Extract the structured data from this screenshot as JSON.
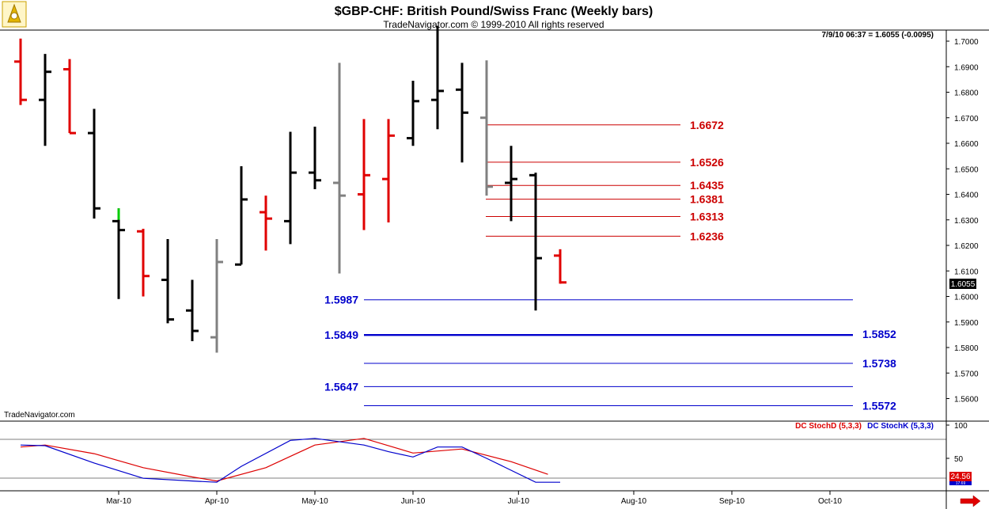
{
  "header": {
    "title": "$GBP-CHF:  British Pound/Swiss Franc  (Weekly bars)",
    "subtitle": "TradeNavigator.com © 1999-2010 All rights reserved",
    "quote": "7/9/10 06:37 = 1.6055 (-0.0095)",
    "watermark": "TradeNavigator.com"
  },
  "colors": {
    "up": "#000000",
    "down": "#e00000",
    "neutral": "#808080",
    "highlight": "#00cc00",
    "resistance": "#cc0000",
    "support": "#0000cc",
    "stochD": "#dd0000",
    "stochK": "#0000cc"
  },
  "icons": {
    "logo": "sextant-icon",
    "scroll": "arrow-right-icon"
  },
  "chart_data": [
    {
      "type": "ohlc",
      "title": "$GBP-CHF:  British Pound/Swiss Franc  (Weekly bars)",
      "ylim": [
        1.5545,
        1.7065
      ],
      "y_ticks": [
        "1.7000",
        "1.6900",
        "1.6800",
        "1.6700",
        "1.6600",
        "1.6500",
        "1.6400",
        "1.6300",
        "1.6200",
        "1.6100",
        "1.6000",
        "1.5900",
        "1.5800",
        "1.5700",
        "1.5600"
      ],
      "x_ticks": [
        "Mar-10",
        "Apr-10",
        "May-10",
        "Jun-10",
        "Jul-10",
        "Aug-10",
        "Sep-10",
        "Oct-10"
      ],
      "x_tick_week": [
        4.0,
        8.0,
        12.0,
        16.0,
        20.3,
        25.0,
        29.0,
        33.0
      ],
      "last_price": "1.6055",
      "bars": [
        {
          "w": 0,
          "o": 1.692,
          "h": 1.701,
          "l": 1.675,
          "c": 1.677,
          "color": "down"
        },
        {
          "w": 1,
          "o": 1.677,
          "h": 1.695,
          "l": 1.659,
          "c": 1.688,
          "color": "up"
        },
        {
          "w": 2,
          "o": 1.689,
          "h": 1.693,
          "l": 1.664,
          "c": 1.664,
          "color": "down"
        },
        {
          "w": 3,
          "o": 1.664,
          "h": 1.6735,
          "l": 1.6305,
          "c": 1.6345,
          "color": "up"
        },
        {
          "w": 4,
          "o": 1.6295,
          "h": 1.6345,
          "l": 1.599,
          "c": 1.626,
          "color": "up",
          "top_color": "highlight",
          "top_from": 1.63
        },
        {
          "w": 5,
          "o": 1.6255,
          "h": 1.6265,
          "l": 1.6,
          "c": 1.608,
          "color": "down"
        },
        {
          "w": 6,
          "o": 1.6065,
          "h": 1.6225,
          "l": 1.5895,
          "c": 1.591,
          "color": "up"
        },
        {
          "w": 7,
          "o": 1.5945,
          "h": 1.6065,
          "l": 1.5825,
          "c": 1.5865,
          "color": "up"
        },
        {
          "w": 8,
          "o": 1.584,
          "h": 1.6225,
          "l": 1.578,
          "c": 1.6135,
          "color": "neutral"
        },
        {
          "w": 9,
          "o": 1.6125,
          "h": 1.651,
          "l": 1.6125,
          "c": 1.638,
          "color": "up"
        },
        {
          "w": 10,
          "o": 1.633,
          "h": 1.6395,
          "l": 1.618,
          "c": 1.6305,
          "color": "down"
        },
        {
          "w": 11,
          "o": 1.6295,
          "h": 1.6645,
          "l": 1.6205,
          "c": 1.6485,
          "color": "up"
        },
        {
          "w": 12,
          "o": 1.6485,
          "h": 1.6665,
          "l": 1.642,
          "c": 1.6455,
          "color": "up"
        },
        {
          "w": 13,
          "o": 1.6445,
          "h": 1.6915,
          "l": 1.609,
          "c": 1.6395,
          "color": "neutral"
        },
        {
          "w": 14,
          "o": 1.64,
          "h": 1.6695,
          "l": 1.626,
          "c": 1.6475,
          "color": "down"
        },
        {
          "w": 15,
          "o": 1.646,
          "h": 1.6695,
          "l": 1.629,
          "c": 1.663,
          "color": "down"
        },
        {
          "w": 16,
          "o": 1.662,
          "h": 1.6845,
          "l": 1.659,
          "c": 1.6765,
          "color": "up"
        },
        {
          "w": 17,
          "o": 1.677,
          "h": 1.706,
          "l": 1.6655,
          "c": 1.6805,
          "color": "up"
        },
        {
          "w": 18,
          "o": 1.681,
          "h": 1.6915,
          "l": 1.6525,
          "c": 1.672,
          "color": "up"
        },
        {
          "w": 19,
          "o": 1.67,
          "h": 1.6925,
          "l": 1.6395,
          "c": 1.643,
          "color": "neutral"
        },
        {
          "w": 20,
          "o": 1.6445,
          "h": 1.659,
          "l": 1.6295,
          "c": 1.646,
          "color": "up"
        },
        {
          "w": 21,
          "o": 1.6475,
          "h": 1.6485,
          "l": 1.5945,
          "c": 1.615,
          "color": "up"
        },
        {
          "w": 22,
          "o": 1.616,
          "h": 1.6185,
          "l": 1.605,
          "c": 1.6055,
          "color": "down"
        }
      ],
      "resistance_levels": [
        "1.6672",
        "1.6526",
        "1.6435",
        "1.6381",
        "1.6313",
        "1.6236"
      ],
      "support_levels_left": [
        "1.5987",
        "1.5849",
        "1.5647"
      ],
      "support_levels_right": [
        "1.5852",
        "1.5738",
        "1.5572"
      ]
    },
    {
      "type": "line",
      "title": "",
      "ylim": [
        10,
        100
      ],
      "y_ticks": [
        "100",
        "50"
      ],
      "last_values": [
        "24.56",
        "17.69"
      ],
      "series": [
        {
          "name": "DC StochD (5,3,3)",
          "color": "stochD",
          "x": [
            0,
            1,
            3,
            5,
            7,
            8,
            10,
            12,
            14,
            16,
            18,
            20,
            21.5
          ],
          "values": [
            67,
            70,
            57,
            36,
            22,
            16,
            36,
            70,
            80,
            58,
            64,
            45,
            26
          ]
        },
        {
          "name": "DC StochK (5,3,3)",
          "color": "stochK",
          "x": [
            0,
            1,
            3,
            5,
            7,
            8,
            9,
            11,
            12,
            14,
            15,
            16,
            17,
            18,
            19,
            21,
            22
          ],
          "values": [
            70,
            69,
            43,
            20,
            16,
            14,
            38,
            77,
            80,
            70,
            60,
            52,
            67,
            67,
            50,
            14,
            14
          ]
        }
      ]
    }
  ]
}
